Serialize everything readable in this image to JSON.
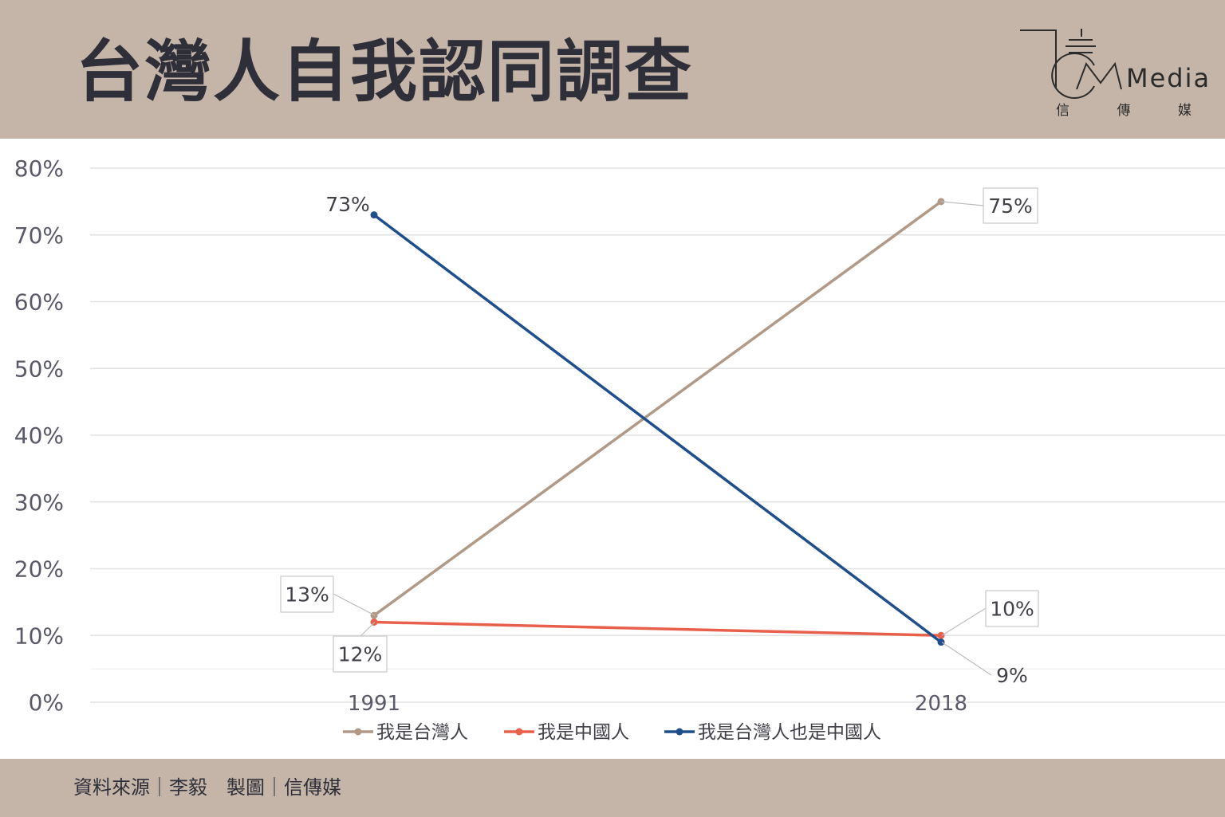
{
  "header": {
    "title": "台灣人自我認同調查",
    "logo": {
      "word": "Media",
      "cn": [
        "信",
        "傳",
        "媒"
      ]
    }
  },
  "footer": {
    "source": "資料來源｜李毅　製圖｜信傳媒"
  },
  "colors": {
    "header_bg": "#c5b5a8",
    "taiwanese": "#b09a87",
    "chinese": "#e8604c",
    "both": "#1f4e8c"
  },
  "chart_data": {
    "type": "line",
    "x": [
      "1991",
      "2018"
    ],
    "ylim": [
      0,
      0.8
    ],
    "yticks": [
      "0%",
      "10%",
      "20%",
      "30%",
      "40%",
      "50%",
      "60%",
      "70%",
      "80%"
    ],
    "grid": true,
    "legend": "bottom",
    "series": [
      {
        "name": "我是台灣人",
        "values": [
          0.13,
          0.75
        ],
        "labels": [
          "13%",
          "75%"
        ],
        "color": "#b09a87"
      },
      {
        "name": "我是中國人",
        "values": [
          0.12,
          0.1
        ],
        "labels": [
          "12%",
          "10%"
        ],
        "color": "#e8604c"
      },
      {
        "name": "我是台灣人也是中國人",
        "values": [
          0.73,
          0.09
        ],
        "labels": [
          "73%",
          "9%"
        ],
        "color": "#1f4e8c"
      }
    ]
  }
}
